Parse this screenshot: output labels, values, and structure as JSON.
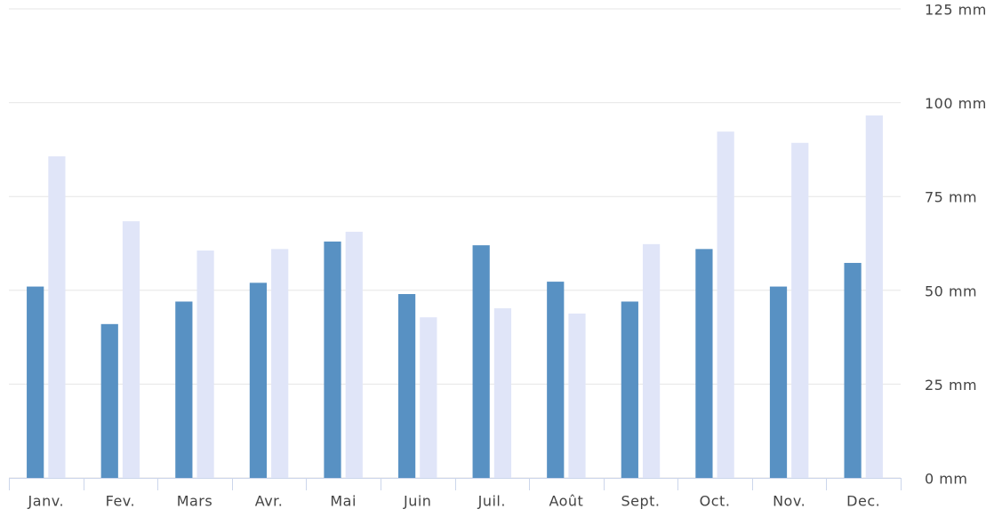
{
  "chart_data": {
    "type": "bar",
    "categories": [
      "Janv.",
      "Fev.",
      "Mars",
      "Avr.",
      "Mai",
      "Juin",
      "Juil.",
      "Août",
      "Sept.",
      "Oct.",
      "Nov.",
      "Dec."
    ],
    "series": [
      {
        "color": "#5891c3",
        "values": [
          51,
          41,
          47,
          52,
          63,
          49,
          62,
          52.3,
          47,
          61,
          51,
          57.3
        ]
      },
      {
        "color": "#e0e5f8",
        "values": [
          85.7,
          68.4,
          60.6,
          61,
          65.6,
          42.8,
          45.2,
          43.8,
          62.3,
          92.3,
          89.3,
          96.6
        ]
      }
    ],
    "ylim": [
      0,
      125
    ],
    "yticks": [
      {
        "value": 0,
        "label": "0 mm"
      },
      {
        "value": 25,
        "label": "25 mm"
      },
      {
        "value": 50,
        "label": "50 mm"
      },
      {
        "value": 75,
        "label": "75 mm"
      },
      {
        "value": 100,
        "label": "100 mm"
      },
      {
        "value": 125,
        "label": "125 mm"
      }
    ],
    "grid": true
  }
}
